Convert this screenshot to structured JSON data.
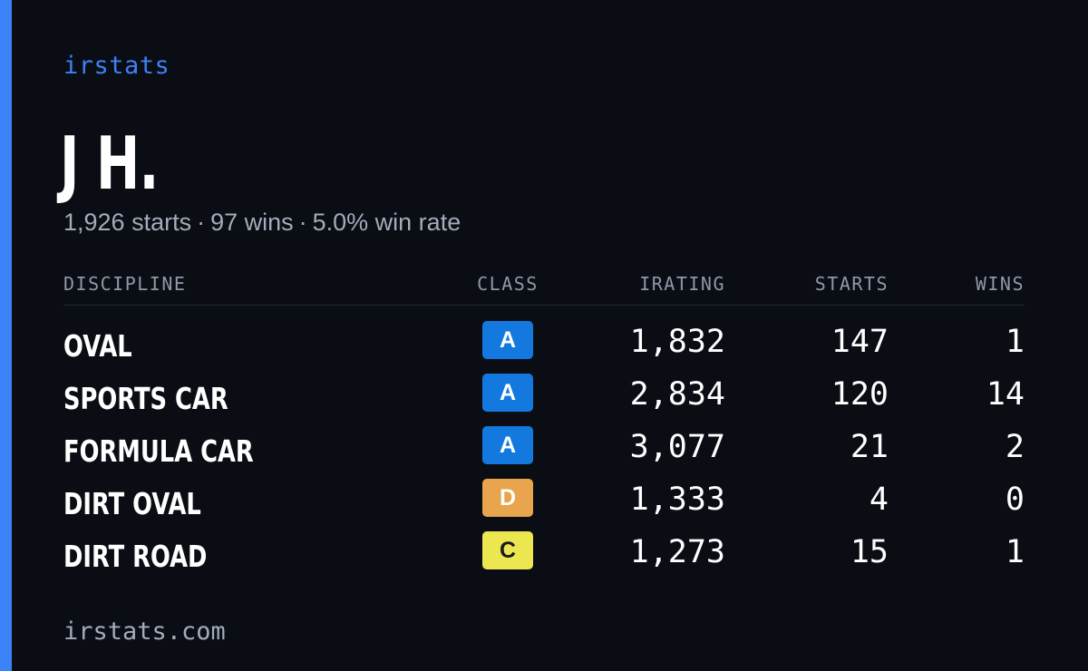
{
  "brand": "irstats",
  "driver": {
    "name": "J H.",
    "summary": {
      "starts": "1,926 starts",
      "wins": "97 wins",
      "win_rate": "5.0% win rate",
      "separator": "·"
    }
  },
  "table": {
    "headers": {
      "discipline": "DISCIPLINE",
      "class": "CLASS",
      "irating": "IRATING",
      "starts": "STARTS",
      "wins": "WINS"
    },
    "rows": [
      {
        "discipline": "OVAL",
        "class": "A",
        "class_color": "#1479de",
        "class_text_color": "#ffffff",
        "irating": "1,832",
        "starts": "147",
        "wins": "1"
      },
      {
        "discipline": "SPORTS CAR",
        "class": "A",
        "class_color": "#1479de",
        "class_text_color": "#ffffff",
        "irating": "2,834",
        "starts": "120",
        "wins": "14"
      },
      {
        "discipline": "FORMULA CAR",
        "class": "A",
        "class_color": "#1479de",
        "class_text_color": "#ffffff",
        "irating": "3,077",
        "starts": "21",
        "wins": "2"
      },
      {
        "discipline": "DIRT OVAL",
        "class": "D",
        "class_color": "#e8a54e",
        "class_text_color": "#ffffff",
        "irating": "1,333",
        "starts": "4",
        "wins": "0"
      },
      {
        "discipline": "DIRT ROAD",
        "class": "C",
        "class_color": "#ece651",
        "class_text_color": "#1a1a1a",
        "irating": "1,273",
        "starts": "15",
        "wins": "1"
      }
    ]
  },
  "footer": "irstats.com",
  "colors": {
    "background": "#0a0d14",
    "accent": "#3b82f6"
  }
}
